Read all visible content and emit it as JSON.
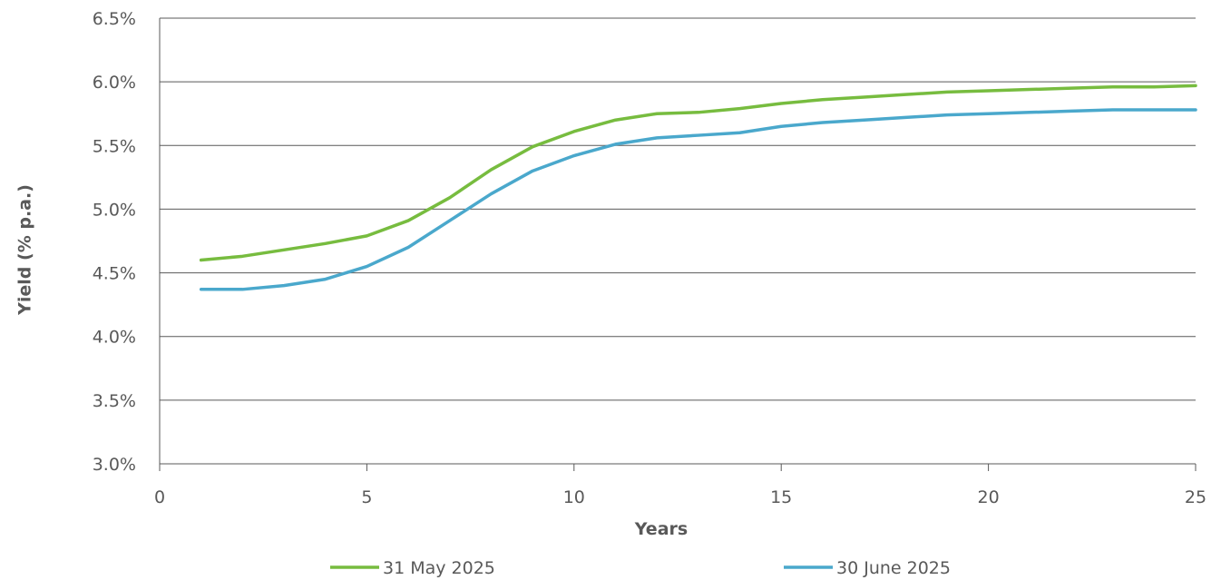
{
  "chart_data": {
    "type": "line",
    "xlabel": "Years",
    "ylabel": "Yield (% p.a.)",
    "xlim": [
      0,
      25
    ],
    "ylim": [
      3.0,
      6.5
    ],
    "x_ticks": [
      0,
      5,
      10,
      15,
      20,
      25
    ],
    "y_ticks": [
      3.0,
      3.5,
      4.0,
      4.5,
      5.0,
      5.5,
      6.0,
      6.5
    ],
    "x_tick_labels": [
      "0",
      "5",
      "10",
      "15",
      "20",
      "25"
    ],
    "y_tick_labels": [
      "3.0%",
      "3.5%",
      "4.0%",
      "4.5%",
      "5.0%",
      "5.5%",
      "6.0%",
      "6.5%"
    ],
    "grid": "horizontal",
    "legend_position": "bottom",
    "x": [
      1,
      2,
      3,
      4,
      5,
      6,
      7,
      8,
      9,
      10,
      11,
      12,
      13,
      14,
      15,
      16,
      17,
      18,
      19,
      20,
      21,
      22,
      23,
      24,
      25
    ],
    "series": [
      {
        "name": "31 May 2025",
        "color": "#77bc3f",
        "values": [
          4.6,
          4.63,
          4.68,
          4.73,
          4.79,
          4.91,
          5.09,
          5.31,
          5.49,
          5.61,
          5.7,
          5.75,
          5.76,
          5.79,
          5.83,
          5.86,
          5.88,
          5.9,
          5.92,
          5.93,
          5.94,
          5.95,
          5.96,
          5.96,
          5.97
        ]
      },
      {
        "name": "30 June 2025",
        "color": "#4aa8cc",
        "values": [
          4.37,
          4.37,
          4.4,
          4.45,
          4.55,
          4.7,
          4.91,
          5.12,
          5.3,
          5.42,
          5.51,
          5.56,
          5.58,
          5.6,
          5.65,
          5.68,
          5.7,
          5.72,
          5.74,
          5.75,
          5.76,
          5.77,
          5.78,
          5.78,
          5.78
        ]
      }
    ]
  }
}
